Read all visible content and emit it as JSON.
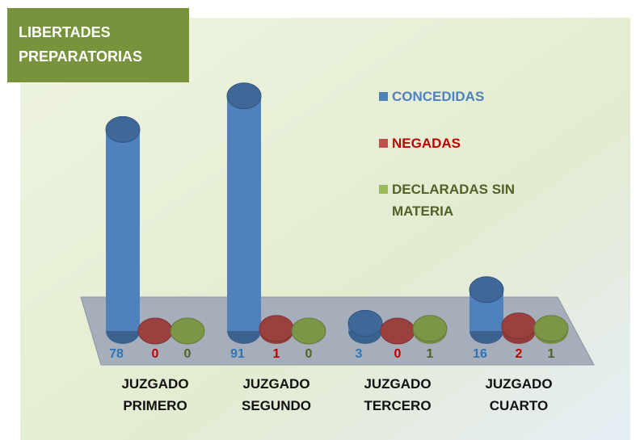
{
  "chart_data": {
    "type": "bar3d",
    "title": "LIBERTADES PREPARATORIAS",
    "categories": [
      "JUZGADO PRIMERO",
      "JUZGADO SEGUNDO",
      "JUZGADO TERCERO",
      "JUZGADO CUARTO"
    ],
    "series": [
      {
        "name": "CONCEDIDAS",
        "color": "#4f81bd",
        "label_color": "#2e75b6",
        "values": [
          78,
          91,
          3,
          16
        ]
      },
      {
        "name": "NEGADAS",
        "color": "#c0504d",
        "label_color": "#c00000",
        "values": [
          0,
          1,
          0,
          2
        ]
      },
      {
        "name": "DECLARADAS SIN MATERIA",
        "color": "#9bbb59",
        "label_color": "#4f6228",
        "values": [
          0,
          0,
          1,
          1
        ]
      }
    ],
    "ylim": [
      0,
      100
    ]
  }
}
